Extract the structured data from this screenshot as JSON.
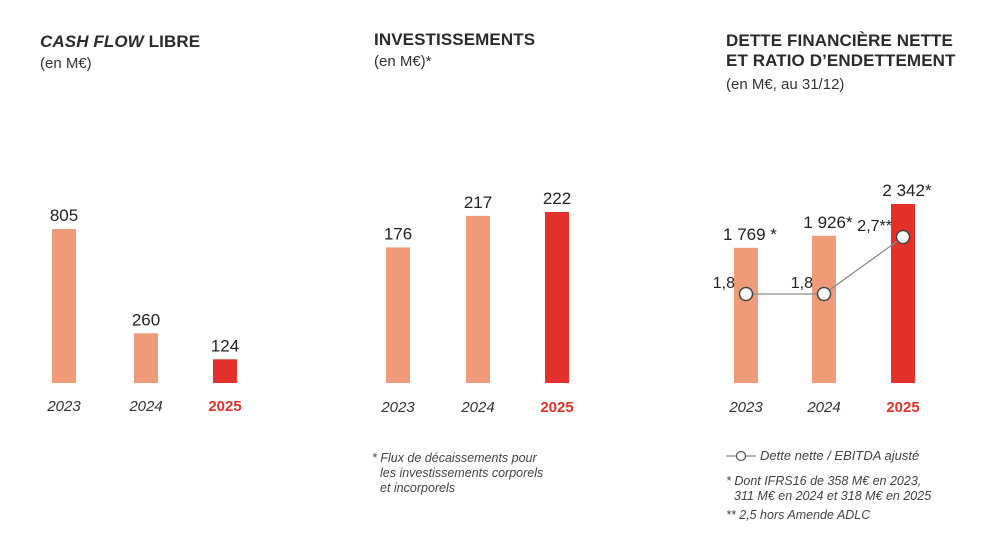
{
  "colors": {
    "past": "#ef9a78",
    "current": "#e2312a",
    "text": "#222222",
    "line": "#8a8a8a"
  },
  "chart_data": [
    {
      "type": "bar",
      "title_em": "CASH FLOW",
      "title_rest": " LIBRE",
      "subtitle": "(en M€)",
      "categories": [
        "2023",
        "2024",
        "2025"
      ],
      "value_labels": [
        "805",
        "260",
        "124"
      ],
      "values": [
        805,
        260,
        124
      ],
      "highlight_index": 2
    },
    {
      "type": "bar",
      "title": "INVESTISSEMENTS",
      "subtitle": "(en M€)*",
      "categories": [
        "2023",
        "2024",
        "2025"
      ],
      "value_labels": [
        "176",
        "217",
        "222"
      ],
      "values": [
        176,
        217,
        222
      ],
      "highlight_index": 2,
      "footnote": [
        "* Flux de décaissements pour",
        "les investissements corporels",
        "et incorporels"
      ]
    },
    {
      "type": "bar",
      "title_lines": [
        "DETTE FINANCIÈRE NETTE",
        "ET RATIO D’ENDETTEMENT"
      ],
      "subtitle": "(en M€, au 31/12)",
      "categories": [
        "2023",
        "2024",
        "2025"
      ],
      "value_labels": [
        "1 769 *",
        "1 926*",
        "2 342*"
      ],
      "values": [
        1769,
        1926,
        2342
      ],
      "highlight_index": 2,
      "line_series": {
        "name": "Dette nette / EBITDA ajusté",
        "values": [
          1.8,
          1.8,
          2.7
        ],
        "labels": [
          "1,8",
          "1,8",
          "2,7**"
        ]
      },
      "footnotes": [
        "* Dont IFRS16 de 358 M€ en 2023,",
        "311 M€ en 2024 et 318 M€ en 2025",
        "** 2,5 hors Amende ADLC"
      ]
    }
  ]
}
